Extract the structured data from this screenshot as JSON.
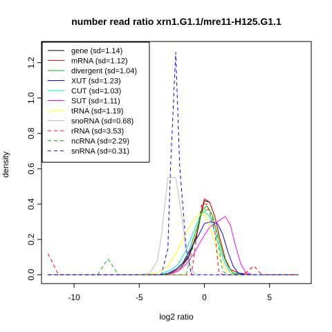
{
  "chart_data": {
    "type": "line",
    "title": "number read ratio xrn1.G1.1/mre11-H125.G1.1",
    "xlabel": "log2 ratio",
    "ylabel": "density",
    "xlim": [
      -12.5,
      8.2
    ],
    "ylim": [
      -0.05,
      1.32
    ],
    "x_ticks": [
      -10,
      -5,
      0,
      5
    ],
    "y_ticks": [
      0.0,
      0.2,
      0.4,
      0.6,
      0.8,
      1.0,
      1.2
    ],
    "grid": false,
    "legend_position": "top-left",
    "series": [
      {
        "name": "gene (sd=1.14)",
        "color": "#000000",
        "dash": "solid",
        "points": [
          [
            -12,
            0
          ],
          [
            -3.5,
            0
          ],
          [
            -2.5,
            0.01
          ],
          [
            -1.8,
            0.04
          ],
          [
            -1.2,
            0.1
          ],
          [
            -0.6,
            0.22
          ],
          [
            -0.2,
            0.36
          ],
          [
            0,
            0.42
          ],
          [
            0.4,
            0.41
          ],
          [
            0.8,
            0.33
          ],
          [
            1.2,
            0.2
          ],
          [
            1.6,
            0.09
          ],
          [
            2.0,
            0.03
          ],
          [
            2.6,
            0.01
          ],
          [
            3.5,
            0
          ],
          [
            7.2,
            0
          ]
        ]
      },
      {
        "name": "mRNA (sd=1.12)",
        "color": "#ff0000",
        "dash": "solid",
        "points": [
          [
            -12,
            0
          ],
          [
            -3.5,
            0
          ],
          [
            -2.5,
            0.01
          ],
          [
            -1.8,
            0.04
          ],
          [
            -1.2,
            0.11
          ],
          [
            -0.6,
            0.23
          ],
          [
            -0.2,
            0.37
          ],
          [
            0,
            0.43
          ],
          [
            0.4,
            0.41
          ],
          [
            0.8,
            0.33
          ],
          [
            1.2,
            0.2
          ],
          [
            1.6,
            0.09
          ],
          [
            2.0,
            0.03
          ],
          [
            2.6,
            0.01
          ],
          [
            3.5,
            0
          ],
          [
            7.2,
            0
          ]
        ]
      },
      {
        "name": "divergent (sd=1.04)",
        "color": "#00bb00",
        "dash": "solid",
        "points": [
          [
            -12,
            0
          ],
          [
            -3.5,
            0
          ],
          [
            -2.6,
            0.01
          ],
          [
            -1.8,
            0.05
          ],
          [
            -1.2,
            0.13
          ],
          [
            -0.6,
            0.26
          ],
          [
            -0.1,
            0.37
          ],
          [
            0.2,
            0.39
          ],
          [
            0.6,
            0.34
          ],
          [
            1.0,
            0.23
          ],
          [
            1.4,
            0.12
          ],
          [
            1.8,
            0.05
          ],
          [
            2.2,
            0.01
          ],
          [
            3.0,
            0
          ],
          [
            7.2,
            0
          ]
        ]
      },
      {
        "name": "XUT (sd=1.23)",
        "color": "#0000ff",
        "dash": "solid",
        "points": [
          [
            -12,
            0
          ],
          [
            -3.0,
            0
          ],
          [
            -2.2,
            0.03
          ],
          [
            -1.6,
            0.07
          ],
          [
            -1.0,
            0.15
          ],
          [
            -0.4,
            0.23
          ],
          [
            0,
            0.29
          ],
          [
            0.5,
            0.3
          ],
          [
            1.0,
            0.29
          ],
          [
            1.4,
            0.23
          ],
          [
            1.8,
            0.13
          ],
          [
            2.2,
            0.05
          ],
          [
            2.6,
            0.01
          ],
          [
            3.2,
            0
          ],
          [
            7.2,
            0
          ]
        ]
      },
      {
        "name": "CUT (sd=1.03)",
        "color": "#00e5e5",
        "dash": "solid",
        "points": [
          [
            -12,
            0
          ],
          [
            -3.5,
            0
          ],
          [
            -2.5,
            0.03
          ],
          [
            -2.0,
            0.06
          ],
          [
            -1.4,
            0.14
          ],
          [
            -0.8,
            0.25
          ],
          [
            -0.3,
            0.34
          ],
          [
            0,
            0.36
          ],
          [
            0.4,
            0.33
          ],
          [
            0.8,
            0.24
          ],
          [
            1.2,
            0.14
          ],
          [
            1.6,
            0.06
          ],
          [
            2.0,
            0.01
          ],
          [
            2.6,
            0
          ],
          [
            7.2,
            0
          ]
        ]
      },
      {
        "name": "SUT (sd=1.11)",
        "color": "#ff00ff",
        "dash": "solid",
        "points": [
          [
            -12,
            0
          ],
          [
            -2.8,
            0
          ],
          [
            -2.0,
            0.02
          ],
          [
            -1.4,
            0.06
          ],
          [
            -0.8,
            0.12
          ],
          [
            -0.2,
            0.2
          ],
          [
            0.4,
            0.27
          ],
          [
            1.0,
            0.3
          ],
          [
            1.6,
            0.33
          ],
          [
            2.0,
            0.28
          ],
          [
            2.4,
            0.16
          ],
          [
            2.8,
            0.06
          ],
          [
            3.2,
            0.01
          ],
          [
            3.8,
            0
          ],
          [
            7.2,
            0
          ]
        ]
      },
      {
        "name": "tRNA (sd=1.19)",
        "color": "#ffff00",
        "dash": "solid",
        "points": [
          [
            -12,
            0
          ],
          [
            -4.5,
            0
          ],
          [
            -3.6,
            0.01
          ],
          [
            -2.8,
            0.05
          ],
          [
            -2.2,
            0.12
          ],
          [
            -1.6,
            0.21
          ],
          [
            -1.0,
            0.29
          ],
          [
            -0.4,
            0.34
          ],
          [
            0,
            0.35
          ],
          [
            0.4,
            0.28
          ],
          [
            0.8,
            0.18
          ],
          [
            1.2,
            0.09
          ],
          [
            1.6,
            0.03
          ],
          [
            2.2,
            0
          ],
          [
            7.2,
            0
          ]
        ]
      },
      {
        "name": "snoRNA (sd=0.68)",
        "color": "#bebebe",
        "dash": "solid",
        "points": [
          [
            -12,
            0
          ],
          [
            -4.8,
            0
          ],
          [
            -4.2,
            0.01
          ],
          [
            -3.6,
            0.08
          ],
          [
            -3.3,
            0.22
          ],
          [
            -2.8,
            0.55
          ],
          [
            -2.2,
            0.55
          ],
          [
            -1.8,
            0.36
          ],
          [
            -1.4,
            0.14
          ],
          [
            -1.0,
            0.03
          ],
          [
            -0.6,
            0
          ],
          [
            7.2,
            0
          ]
        ]
      },
      {
        "name": "rRNA (sd=3.53)",
        "color": "#ff0000",
        "dash": "dashed",
        "points": [
          [
            -12,
            0.12
          ],
          [
            -11.2,
            0
          ],
          [
            -1.0,
            0
          ],
          [
            -0.6,
            0.21
          ],
          [
            -0.2,
            0.4
          ],
          [
            0.2,
            0.4
          ],
          [
            0.8,
            0.25
          ],
          [
            1.1,
            0.02
          ],
          [
            1.4,
            0
          ],
          [
            3.0,
            0
          ],
          [
            3.8,
            0.05
          ],
          [
            4.4,
            0
          ],
          [
            7.2,
            0
          ]
        ]
      },
      {
        "name": "ncRNA (sd=2.29)",
        "color": "#00bb00",
        "dash": "dashed",
        "points": [
          [
            -12,
            0
          ],
          [
            -8.2,
            0
          ],
          [
            -7.4,
            0.09
          ],
          [
            -6.6,
            0
          ],
          [
            -1.4,
            0
          ],
          [
            -0.8,
            0.18
          ],
          [
            -0.2,
            0.36
          ],
          [
            0.4,
            0.37
          ],
          [
            0.9,
            0.25
          ],
          [
            1.4,
            0.02
          ],
          [
            1.8,
            0
          ],
          [
            7.2,
            0
          ]
        ]
      },
      {
        "name": "snRNA (sd=0.31)",
        "color": "#0000ff",
        "dash": "dashed",
        "points": [
          [
            -12,
            0
          ],
          [
            -3.3,
            0
          ],
          [
            -2.8,
            0.15
          ],
          [
            -2.6,
            0.6
          ],
          [
            -2.2,
            1.26
          ],
          [
            -1.9,
            0.62
          ],
          [
            -1.4,
            0.15
          ],
          [
            -1.0,
            0
          ],
          [
            7.2,
            0
          ]
        ]
      }
    ]
  }
}
